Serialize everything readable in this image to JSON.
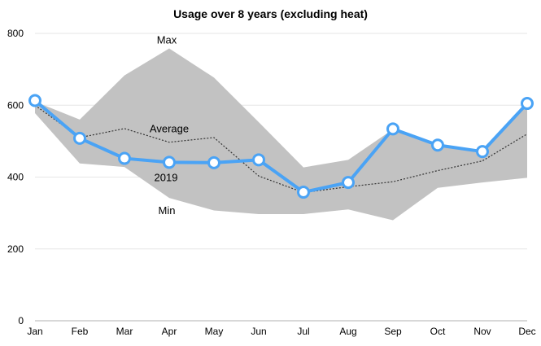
{
  "chart_data": {
    "type": "line",
    "title": "Usage over 8 years (excluding heat)",
    "xlabel": "",
    "ylabel": "",
    "categories": [
      "Jan",
      "Feb",
      "Mar",
      "Apr",
      "May",
      "Jun",
      "Jul",
      "Aug",
      "Sep",
      "Oct",
      "Nov",
      "Dec"
    ],
    "ylim": [
      0,
      800
    ],
    "yticks": [
      0,
      200,
      400,
      600,
      800
    ],
    "grid": true,
    "legend": "none",
    "series": [
      {
        "name": "Max",
        "values": [
          610,
          560,
          683,
          758,
          677,
          553,
          427,
          448,
          533,
          493,
          465,
          612
        ]
      },
      {
        "name": "Min",
        "values": [
          578,
          438,
          428,
          342,
          307,
          297,
          297,
          310,
          280,
          370,
          385,
          398
        ]
      },
      {
        "name": "Average",
        "values": [
          600,
          510,
          535,
          497,
          510,
          403,
          357,
          373,
          387,
          418,
          445,
          520
        ]
      },
      {
        "name": "2019",
        "values": [
          613,
          508,
          452,
          441,
          440,
          448,
          358,
          385,
          534,
          489,
          471,
          605
        ]
      }
    ],
    "colors": {
      "range_fill": "#c2c2c2",
      "line_2019": "#4aa3f5",
      "average": "#333333",
      "grid": "#e6e6e6"
    }
  }
}
